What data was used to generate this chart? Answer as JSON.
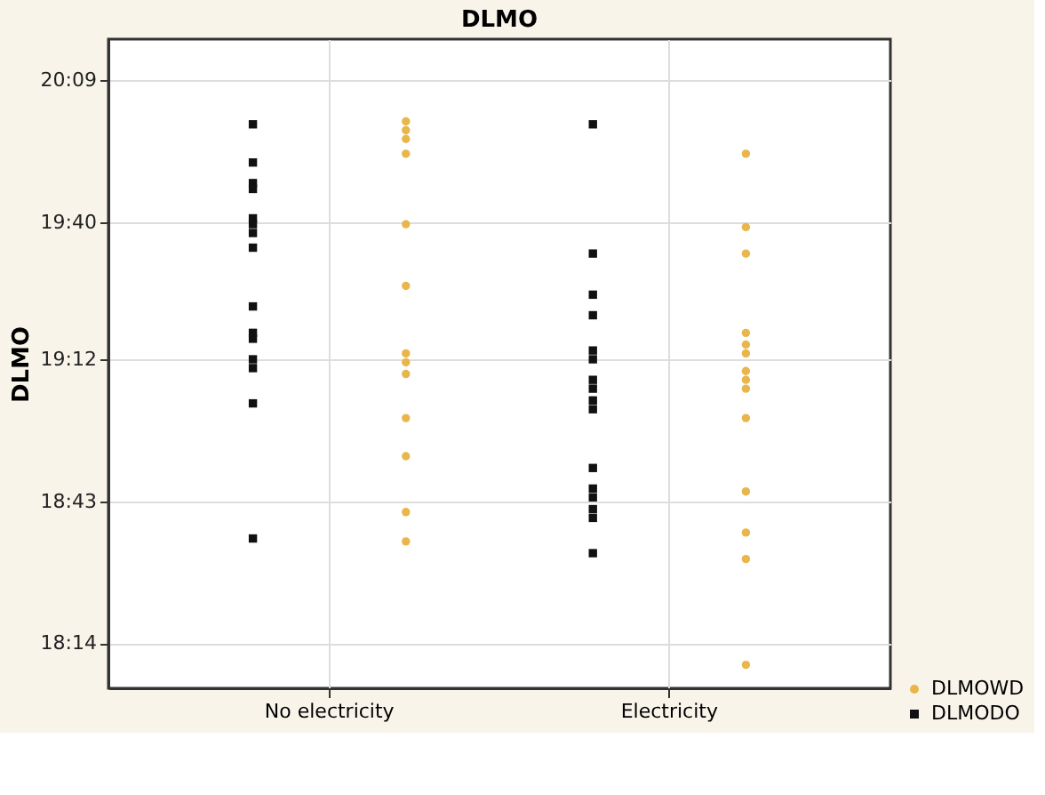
{
  "chart_data": {
    "type": "scatter",
    "title": "DLMO",
    "ylabel": "DLMO",
    "categories": [
      "No electricity",
      "Electricity"
    ],
    "ylim": [
      18.08,
      20.29
    ],
    "yticks": [
      {
        "value": 18.2333,
        "label": "18:14"
      },
      {
        "value": 18.7167,
        "label": "18:43"
      },
      {
        "value": 19.2,
        "label": "19:12"
      },
      {
        "value": 19.6667,
        "label": "19:40"
      },
      {
        "value": 20.15,
        "label": "20:09"
      }
    ],
    "grid": true,
    "legend": "bottom right",
    "series": [
      {
        "name": "DLMOWD",
        "color": "#e8b64a",
        "marker": "circle",
        "x": [
          "No electricity",
          "No electricity",
          "No electricity",
          "No electricity",
          "No electricity",
          "No electricity",
          "No electricity",
          "No electricity",
          "No electricity",
          "No electricity",
          "No electricity",
          "No electricity",
          "No electricity",
          "Electricity",
          "Electricity",
          "Electricity",
          "Electricity",
          "Electricity",
          "Electricity",
          "Electricity",
          "Electricity",
          "Electricity",
          "Electricity",
          "Electricity",
          "Electricity",
          "Electricity",
          "Electricity"
        ],
        "values": [
          20.01,
          19.98,
          19.95,
          19.9,
          19.66,
          19.45,
          19.22,
          19.19,
          19.15,
          19.0,
          18.87,
          18.68,
          18.58,
          19.9,
          19.65,
          19.56,
          19.29,
          19.25,
          19.22,
          19.16,
          19.13,
          19.1,
          19.0,
          18.75,
          18.61,
          18.52,
          18.16
        ]
      },
      {
        "name": "DLMODO",
        "color": "#111111",
        "marker": "square",
        "x": [
          "No electricity",
          "No electricity",
          "No electricity",
          "No electricity",
          "No electricity",
          "No electricity",
          "No electricity",
          "No electricity",
          "No electricity",
          "No electricity",
          "No electricity",
          "No electricity",
          "No electricity",
          "No electricity",
          "No electricity",
          "Electricity",
          "Electricity",
          "Electricity",
          "Electricity",
          "Electricity",
          "Electricity",
          "Electricity",
          "Electricity",
          "Electricity",
          "Electricity",
          "Electricity",
          "Electricity",
          "Electricity",
          "Electricity",
          "Electricity",
          "Electricity"
        ],
        "values": [
          20.0,
          19.87,
          19.8,
          19.78,
          19.68,
          19.66,
          19.63,
          19.58,
          19.38,
          19.29,
          19.27,
          19.2,
          19.17,
          19.05,
          18.59,
          20.0,
          19.56,
          19.42,
          19.35,
          19.23,
          19.2,
          19.13,
          19.1,
          19.06,
          19.03,
          18.83,
          18.76,
          18.73,
          18.69,
          18.66,
          18.54
        ]
      }
    ]
  }
}
